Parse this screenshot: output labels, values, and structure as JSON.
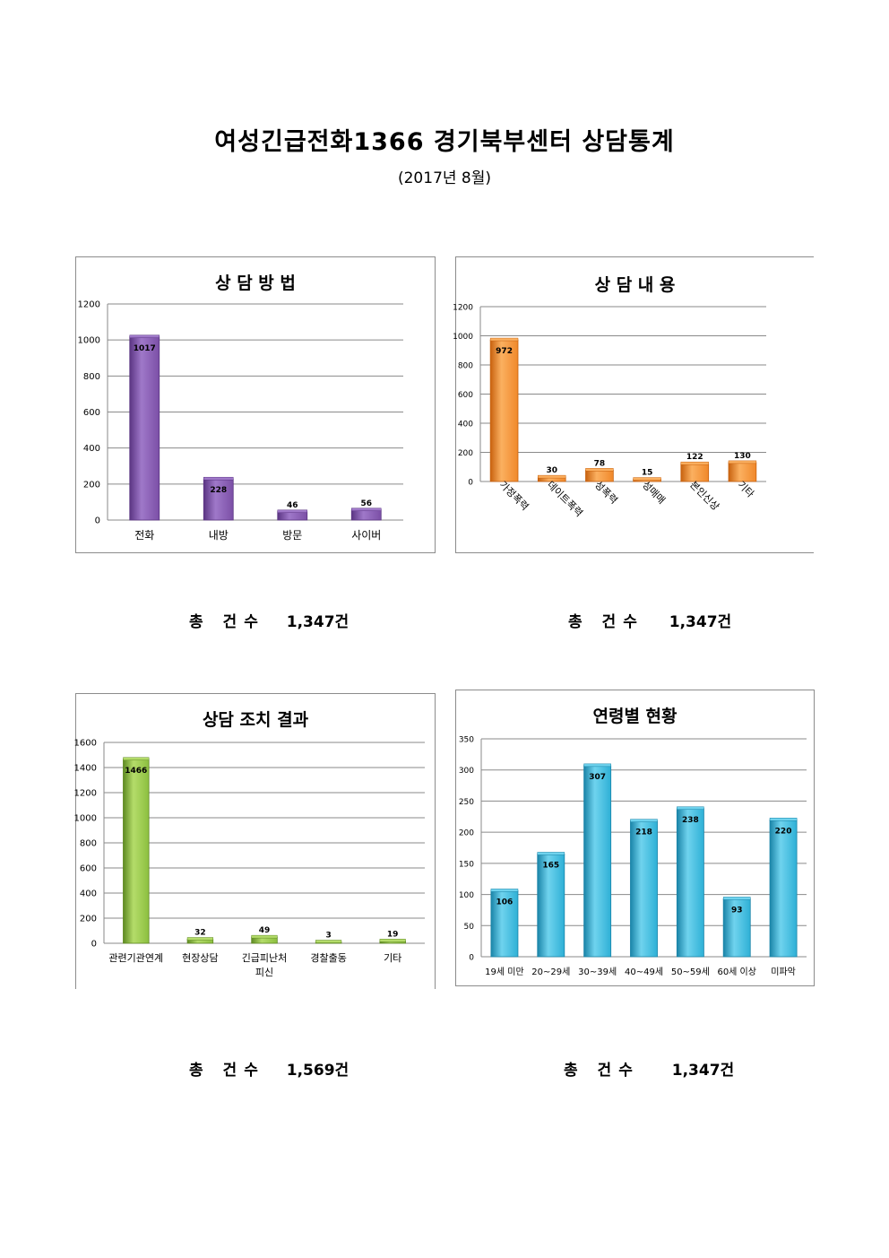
{
  "page": {
    "title": "여성긴급전화1366 경기북부센터 상담통계",
    "subtitle": "(2017년 8월)"
  },
  "totals": [
    {
      "label": "총 건수",
      "value": "1,347건"
    },
    {
      "label": "총 건수",
      "value": "1,347건"
    },
    {
      "label": "총 건수",
      "value": "1,569건"
    },
    {
      "label": "총 건수",
      "value": "1,347건"
    }
  ],
  "chart_data": [
    {
      "type": "bar",
      "title": "상 담 방 법",
      "categories": [
        "전화",
        "내방",
        "방문",
        "사이버"
      ],
      "values": [
        1017,
        228,
        46,
        56
      ],
      "ylim": [
        0,
        1200
      ],
      "yticks": [
        0,
        200,
        400,
        600,
        800,
        1000,
        1200
      ],
      "grid": true,
      "color": "#7b4fa6",
      "colorLight": "#9f78c9",
      "colorDark": "#5b3583"
    },
    {
      "type": "bar",
      "title": "상 담 내 용",
      "categories": [
        "가정폭력",
        "데이트폭력",
        "성폭력",
        "성매매",
        "본인신상",
        "기타"
      ],
      "values": [
        972,
        30,
        78,
        15,
        122,
        130
      ],
      "ylim": [
        0,
        1200
      ],
      "yticks": [
        0,
        200,
        400,
        600,
        800,
        1000,
        1200
      ],
      "grid": true,
      "rotate_labels": true,
      "color": "#f0882a",
      "colorLight": "#fbb060",
      "colorDark": "#c8620f"
    },
    {
      "type": "bar",
      "title": "상담 조치 결과",
      "categories": [
        "관련기관연계",
        "현장상담",
        "긴급피난처 피신",
        "경찰출동",
        "기타"
      ],
      "values": [
        1466,
        32,
        49,
        3,
        19
      ],
      "ylim": [
        0,
        1600
      ],
      "yticks": [
        0,
        200,
        400,
        600,
        800,
        1000,
        1200,
        1400,
        1600
      ],
      "grid": true,
      "color": "#8cbf3f",
      "colorLight": "#b4dc6a",
      "colorDark": "#5e8a22"
    },
    {
      "type": "bar",
      "title": "연령별 현황",
      "categories": [
        "19세 미만",
        "20~29세",
        "30~39세",
        "40~49세",
        "50~59세",
        "60세 이상",
        "미파악"
      ],
      "values": [
        106,
        165,
        307,
        218,
        238,
        93,
        220
      ],
      "ylim": [
        0,
        350
      ],
      "yticks": [
        0,
        50,
        100,
        150,
        200,
        250,
        300,
        350
      ],
      "grid": true,
      "color": "#2eb0d6",
      "colorLight": "#6fd3ee",
      "colorDark": "#1a84a8"
    }
  ]
}
